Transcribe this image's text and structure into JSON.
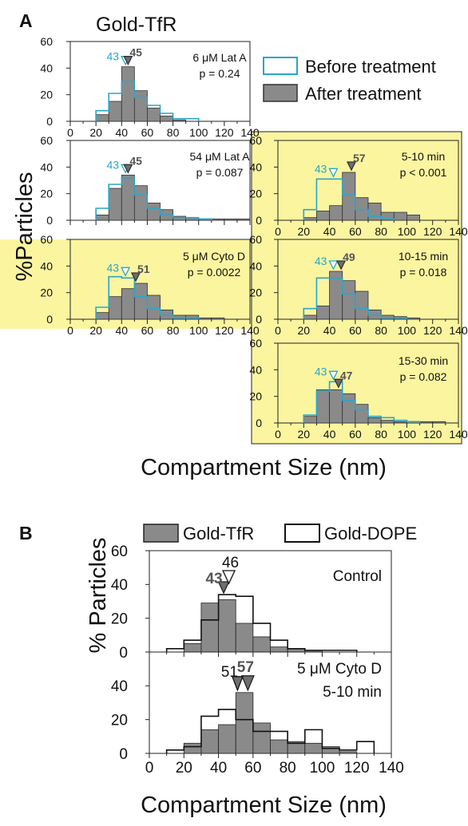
{
  "colors": {
    "after_fill": "#8a8a8a",
    "after_stroke": "#333333",
    "before_stroke": "#2aa6c9",
    "marker_after": "#6e6e6e",
    "highlight": "#fbf5a0"
  },
  "panel_a": {
    "letter": "A",
    "title": "Gold-TfR",
    "ylabel": "%Particles",
    "xlabel": "Compartment Size (nm)",
    "legend": {
      "before": "Before treatment",
      "after": "After treatment"
    }
  },
  "panel_b": {
    "letter": "B",
    "ylabel": "% Particles",
    "xlabel": "Compartment Size (nm)",
    "legend": {
      "tfr": "Gold-TfR",
      "dope": "Gold-DOPE"
    }
  },
  "chart_data": [
    {
      "type": "bar",
      "id": "latA6",
      "bin_edges": [
        0,
        10,
        20,
        30,
        40,
        50,
        60,
        70,
        80,
        90,
        100,
        110,
        120,
        130,
        140
      ],
      "series": [
        {
          "name": "Before treatment",
          "values": [
            0,
            0,
            8,
            21,
            30,
            18,
            12,
            6,
            2,
            2,
            0,
            0,
            0,
            0
          ]
        },
        {
          "name": "After treatment",
          "values": [
            0,
            0,
            5,
            15,
            41,
            23,
            10,
            4,
            1,
            0,
            0,
            0,
            0,
            0
          ]
        }
      ],
      "annotations": {
        "condition": "6 μM Lat A",
        "p": "p = 0.24",
        "before_median": "43",
        "after_median": "45"
      },
      "markers": {
        "before": 43,
        "after": 45
      },
      "xlim": [
        0,
        140
      ],
      "ylim": [
        0,
        60
      ],
      "xticks": [
        "0",
        "20",
        "40",
        "60",
        "80",
        "100",
        "120",
        "140"
      ],
      "yticks": [
        "0",
        "20",
        "40",
        "60"
      ]
    },
    {
      "type": "bar",
      "id": "latA54",
      "bin_edges": [
        0,
        10,
        20,
        30,
        40,
        50,
        60,
        70,
        80,
        90,
        100,
        110,
        120,
        130,
        140
      ],
      "series": [
        {
          "name": "Before treatment",
          "values": [
            0,
            0,
            9,
            27,
            32,
            19,
            9,
            4,
            2,
            2,
            1,
            0,
            0,
            0
          ]
        },
        {
          "name": "After treatment",
          "values": [
            0,
            0,
            4,
            24,
            34,
            26,
            13,
            8,
            3,
            2,
            1,
            1,
            1,
            1
          ]
        }
      ],
      "annotations": {
        "condition": "54 μM Lat A",
        "p": "p = 0.087",
        "before_median": "43",
        "after_median": "45"
      },
      "markers": {
        "before": 43,
        "after": 45
      },
      "xlim": [
        0,
        140
      ],
      "ylim": [
        0,
        60
      ],
      "xticks": [
        "0",
        "20",
        "40",
        "60",
        "80",
        "100",
        "120",
        "140"
      ],
      "yticks": [
        "0",
        "20",
        "40",
        "60"
      ]
    },
    {
      "type": "bar",
      "id": "cytoD",
      "bin_edges": [
        0,
        10,
        20,
        30,
        40,
        50,
        60,
        70,
        80,
        90,
        100,
        110,
        120,
        130,
        140
      ],
      "series": [
        {
          "name": "Before treatment",
          "values": [
            0,
            0,
            9,
            32,
            31,
            17,
            8,
            3,
            1,
            1,
            0,
            0,
            0,
            0
          ]
        },
        {
          "name": "After treatment",
          "values": [
            0,
            0,
            5,
            17,
            23,
            27,
            18,
            7,
            3,
            3,
            1,
            1,
            0,
            0
          ]
        }
      ],
      "annotations": {
        "condition": "5 μM Cyto D",
        "p": "p = 0.0022",
        "before_median": "43",
        "after_median": "51"
      },
      "markers": {
        "before": 43,
        "after": 51
      },
      "xlim": [
        0,
        140
      ],
      "ylim": [
        0,
        60
      ],
      "xticks": [
        "0",
        "20",
        "40",
        "60",
        "80",
        "100",
        "120",
        "140"
      ],
      "yticks": [
        "0",
        "20",
        "40",
        "60"
      ]
    },
    {
      "type": "bar",
      "id": "t5_10",
      "bin_edges": [
        0,
        10,
        20,
        30,
        40,
        50,
        60,
        70,
        80,
        90,
        100,
        110,
        120,
        130,
        140
      ],
      "series": [
        {
          "name": "Before treatment",
          "values": [
            0,
            0,
            8,
            31,
            31,
            19,
            8,
            3,
            1,
            0,
            0,
            0,
            0,
            0
          ]
        },
        {
          "name": "After treatment",
          "values": [
            0,
            0,
            2,
            7,
            11,
            36,
            17,
            13,
            6,
            6,
            4,
            0,
            0,
            0
          ]
        }
      ],
      "annotations": {
        "condition": "5-10 min",
        "p": "p < 0.001",
        "before_median": "43",
        "after_median": "57"
      },
      "markers": {
        "before": 43,
        "after": 57
      },
      "xlim": [
        0,
        140
      ],
      "ylim": [
        0,
        60
      ],
      "xticks": [
        "0",
        "20",
        "40",
        "60",
        "80",
        "100",
        "120",
        "140"
      ],
      "yticks": [
        "0",
        "20",
        "40",
        "60"
      ]
    },
    {
      "type": "bar",
      "id": "t10_15",
      "bin_edges": [
        0,
        10,
        20,
        30,
        40,
        50,
        60,
        70,
        80,
        90,
        100,
        110,
        120,
        130,
        140
      ],
      "series": [
        {
          "name": "Before treatment",
          "values": [
            0,
            0,
            8,
            31,
            31,
            19,
            8,
            3,
            1,
            1,
            0,
            0,
            0,
            0
          ]
        },
        {
          "name": "After treatment",
          "values": [
            0,
            0,
            3,
            10,
            36,
            29,
            21,
            7,
            3,
            2,
            1,
            0,
            0,
            0
          ]
        }
      ],
      "annotations": {
        "condition": "10-15 min",
        "p": "p = 0.018",
        "before_median": "43",
        "after_median": "49"
      },
      "markers": {
        "before": 43,
        "after": 49
      },
      "xlim": [
        0,
        140
      ],
      "ylim": [
        0,
        60
      ],
      "xticks": [
        "0",
        "20",
        "40",
        "60",
        "80",
        "100",
        "120",
        "140"
      ],
      "yticks": [
        "0",
        "20",
        "40",
        "60"
      ]
    },
    {
      "type": "bar",
      "id": "t15_30",
      "bin_edges": [
        0,
        10,
        20,
        30,
        40,
        50,
        60,
        70,
        80,
        90,
        100,
        110,
        120,
        130,
        140
      ],
      "series": [
        {
          "name": "Before treatment",
          "values": [
            0,
            0,
            6,
            24,
            31,
            17,
            10,
            5,
            4,
            2,
            1,
            0,
            0,
            0
          ]
        },
        {
          "name": "After treatment",
          "values": [
            0,
            0,
            5,
            25,
            25,
            22,
            14,
            4,
            2,
            1,
            0,
            1,
            1,
            0
          ]
        }
      ],
      "annotations": {
        "condition": "15-30 min",
        "p": "p = 0.082",
        "before_median": "43",
        "after_median": "47"
      },
      "markers": {
        "before": 43,
        "after": 47
      },
      "xlim": [
        0,
        140
      ],
      "ylim": [
        0,
        60
      ],
      "xticks": [
        "0",
        "20",
        "40",
        "60",
        "80",
        "100",
        "120",
        "140"
      ],
      "yticks": [
        "0",
        "20",
        "40",
        "60"
      ]
    },
    {
      "type": "bar",
      "id": "b_control",
      "bin_edges": [
        0,
        10,
        20,
        30,
        40,
        50,
        60,
        70,
        80,
        90,
        100,
        110,
        120,
        130,
        140
      ],
      "series": [
        {
          "name": "Gold-TfR",
          "values": [
            0,
            0,
            5,
            29,
            31,
            17,
            9,
            3,
            2,
            1,
            0,
            0,
            0,
            0
          ]
        },
        {
          "name": "Gold-DOPE",
          "values": [
            0,
            2,
            7,
            19,
            34,
            33,
            17,
            7,
            2,
            1,
            1,
            1,
            0,
            0
          ]
        }
      ],
      "annotations": {
        "condition": "Control",
        "tfr_median": "43",
        "dope_median": "46"
      },
      "markers": {
        "tfr": 43,
        "dope": 46
      },
      "xlim": [
        0,
        140
      ],
      "ylim": [
        0,
        60
      ],
      "yticks": [
        "0",
        "20",
        "40",
        "60"
      ]
    },
    {
      "type": "bar",
      "id": "b_cytoD",
      "bin_edges": [
        0,
        10,
        20,
        30,
        40,
        50,
        60,
        70,
        80,
        90,
        100,
        110,
        120,
        130,
        140
      ],
      "series": [
        {
          "name": "Gold-TfR",
          "values": [
            0,
            0,
            6,
            14,
            17,
            36,
            18,
            8,
            7,
            6,
            4,
            1,
            0,
            0
          ]
        },
        {
          "name": "Gold-DOPE",
          "values": [
            0,
            2,
            4,
            22,
            26,
            20,
            13,
            13,
            6,
            14,
            3,
            2,
            7,
            0
          ]
        }
      ],
      "annotations": {
        "condition": "5 μM Cyto D",
        "condition2": "5-10 min",
        "tfr_median": "57",
        "dope_median": "51"
      },
      "markers": {
        "tfr": 57,
        "dope": 51
      },
      "xlim": [
        0,
        140
      ],
      "ylim": [
        0,
        60
      ],
      "yticks": [
        "0",
        "20",
        "40"
      ],
      "xticks": [
        "0",
        "20",
        "40",
        "60",
        "80",
        "100",
        "120",
        "140"
      ]
    }
  ]
}
